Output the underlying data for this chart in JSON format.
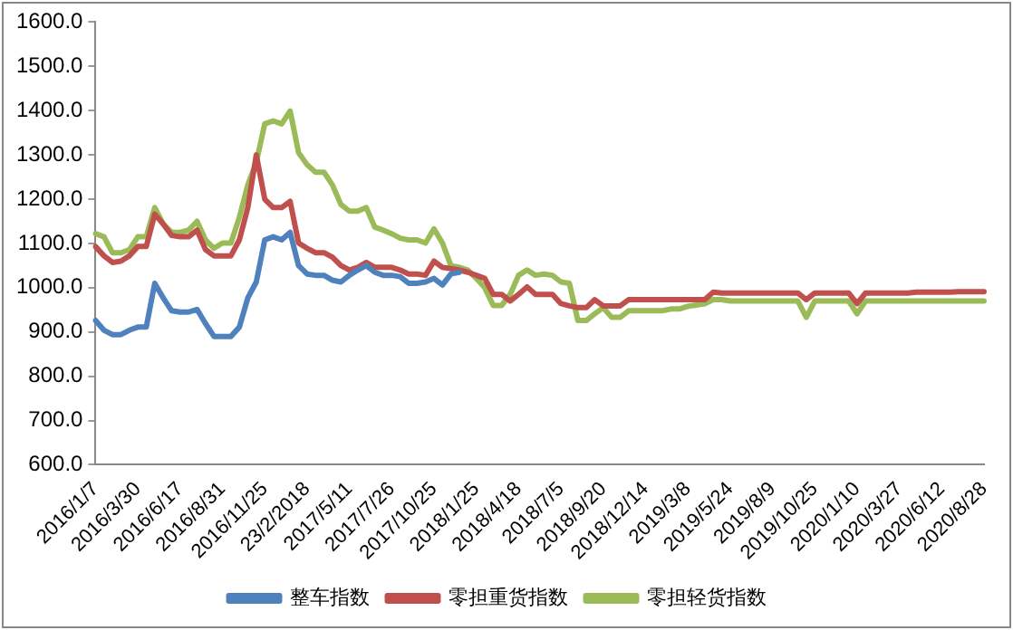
{
  "chart_data": {
    "type": "line",
    "categories": [
      "2016/1/7",
      null,
      null,
      null,
      null,
      "2016/3/30",
      null,
      null,
      null,
      null,
      "2016/6/17",
      null,
      null,
      null,
      null,
      "2016/8/31",
      null,
      null,
      null,
      null,
      "2016/11/25",
      null,
      null,
      null,
      null,
      "23/2/2018",
      null,
      null,
      null,
      null,
      "2017/5/11",
      null,
      null,
      null,
      null,
      "2017/7/26",
      null,
      null,
      null,
      null,
      "2017/10/25",
      null,
      null,
      null,
      null,
      "2018/1/25",
      null,
      null,
      null,
      null,
      "2018/4/18",
      null,
      null,
      null,
      null,
      "2018/7/5",
      null,
      null,
      null,
      null,
      "2018/9/20",
      null,
      null,
      null,
      null,
      "2018/12/14",
      null,
      null,
      null,
      null,
      "2019/3/8",
      null,
      null,
      null,
      null,
      "2019/5/24",
      null,
      null,
      null,
      null,
      "2019/8/9",
      null,
      null,
      null,
      null,
      "2019/10/25",
      null,
      null,
      null,
      null,
      "2020/1/10",
      null,
      null,
      null,
      null,
      "2020/3/27",
      null,
      null,
      null,
      null,
      "2020/6/12",
      null,
      null,
      null,
      null,
      "2020/8/28"
    ],
    "series": [
      {
        "name": "整车指数",
        "color": "#4f81bd",
        "values": [
          926,
          904,
          894,
          894,
          904,
          911,
          911,
          1010,
          977,
          948,
          945,
          945,
          951,
          919,
          890,
          890,
          890,
          911,
          977,
          1013,
          1108,
          1115,
          1108,
          1125,
          1050,
          1031,
          1028,
          1028,
          1017,
          1013,
          1028,
          1040,
          1050,
          1035,
          1028,
          1028,
          1025,
          1010,
          1010,
          1013,
          1021,
          1006,
          1031,
          1035,
          null,
          null,
          null,
          null,
          null,
          null,
          null,
          null,
          null,
          null,
          null,
          null,
          null,
          null,
          null,
          null,
          null,
          null,
          null,
          null,
          null,
          null,
          null,
          null,
          null,
          null,
          null,
          null,
          null,
          null,
          null,
          null,
          null,
          null,
          null,
          null,
          null,
          null,
          null,
          null,
          null,
          null,
          null,
          null,
          null,
          null,
          null,
          null,
          null,
          null,
          null,
          null,
          null,
          null,
          null,
          null,
          null,
          null,
          null,
          null,
          null,
          null
        ]
      },
      {
        "name": "零担重货指数",
        "color": "#c0504d",
        "values": [
          1093,
          1072,
          1057,
          1060,
          1072,
          1093,
          1093,
          1166,
          1144,
          1118,
          1115,
          1115,
          1130,
          1086,
          1072,
          1072,
          1072,
          1108,
          1181,
          1300,
          1200,
          1181,
          1181,
          1195,
          1101,
          1089,
          1079,
          1079,
          1069,
          1050,
          1040,
          1046,
          1057,
          1046,
          1046,
          1046,
          1040,
          1031,
          1031,
          1028,
          1060,
          1046,
          1043,
          1040,
          1035,
          1028,
          1021,
          985,
          985,
          970,
          985,
          1002,
          985,
          985,
          985,
          964,
          959,
          955,
          955,
          973,
          959,
          959,
          959,
          973,
          973,
          973,
          973,
          973,
          973,
          973,
          973,
          973,
          973,
          990,
          988,
          988,
          988,
          988,
          988,
          988,
          988,
          988,
          988,
          988,
          973,
          988,
          988,
          988,
          988,
          988,
          964,
          988,
          988,
          988,
          988,
          988,
          988,
          990,
          990,
          990,
          990,
          990,
          991,
          991,
          991,
          991
        ]
      },
      {
        "name": "零担轻货指数",
        "color": "#9bbb59",
        "values": [
          1122,
          1115,
          1079,
          1079,
          1086,
          1115,
          1115,
          1181,
          1144,
          1125,
          1125,
          1130,
          1150,
          1108,
          1089,
          1101,
          1101,
          1159,
          1232,
          1283,
          1370,
          1377,
          1370,
          1399,
          1305,
          1278,
          1261,
          1261,
          1232,
          1188,
          1173,
          1173,
          1181,
          1137,
          1130,
          1122,
          1112,
          1108,
          1108,
          1101,
          1133,
          1101,
          1050,
          1046,
          1040,
          1021,
          1000,
          960,
          960,
          985,
          1028,
          1040,
          1028,
          1031,
          1028,
          1013,
          1010,
          926,
          926,
          941,
          955,
          933,
          933,
          948,
          948,
          948,
          948,
          948,
          952,
          952,
          958,
          961,
          964,
          973,
          973,
          970,
          970,
          970,
          970,
          970,
          970,
          970,
          970,
          970,
          933,
          970,
          970,
          970,
          970,
          970,
          941,
          970,
          970,
          970,
          970,
          970,
          970,
          970,
          970,
          970,
          970,
          970,
          970,
          970,
          970,
          970
        ]
      }
    ],
    "ylim": [
      600,
      1600
    ],
    "yticks": [
      {
        "value": 600,
        "label": "600.0"
      },
      {
        "value": 700,
        "label": "700.0"
      },
      {
        "value": 800,
        "label": "800.0"
      },
      {
        "value": 900,
        "label": "900.0"
      },
      {
        "value": 1000,
        "label": "1000.0"
      },
      {
        "value": 1100,
        "label": "1100.0"
      },
      {
        "value": 1200,
        "label": "1200.0"
      },
      {
        "value": 1300,
        "label": "1300.0"
      },
      {
        "value": 1400,
        "label": "1400.0"
      },
      {
        "value": 1500,
        "label": "1500.0"
      },
      {
        "value": 1600,
        "label": "1600.0"
      }
    ],
    "grid": false,
    "legend": "bottom",
    "marker": "none",
    "line_style": "solid"
  }
}
